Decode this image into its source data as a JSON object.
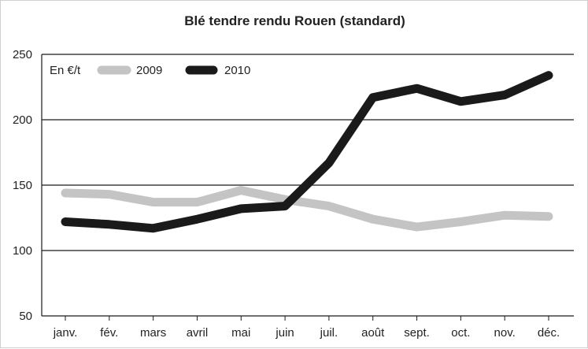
{
  "chart_data": {
    "type": "line",
    "title": "Blé tendre rendu Rouen (standard)",
    "unit_label": "En €/t",
    "categories": [
      "janv.",
      "fév.",
      "mars",
      "avril",
      "mai",
      "juin",
      "juil.",
      "août",
      "sept.",
      "oct.",
      "nov.",
      "déc."
    ],
    "series": [
      {
        "name": "2009",
        "color": "#c4c4c4",
        "values": [
          144,
          143,
          137,
          137,
          146,
          139,
          134,
          124,
          118,
          122,
          127,
          126
        ]
      },
      {
        "name": "2010",
        "color": "#1a1a1a",
        "values": [
          122,
          120,
          117,
          124,
          132,
          134,
          167,
          217,
          224,
          214,
          219,
          234
        ]
      }
    ],
    "ylim": [
      50,
      250
    ],
    "yticks": [
      50,
      100,
      150,
      200,
      250
    ],
    "grid": true,
    "legend_position": "top-left"
  }
}
